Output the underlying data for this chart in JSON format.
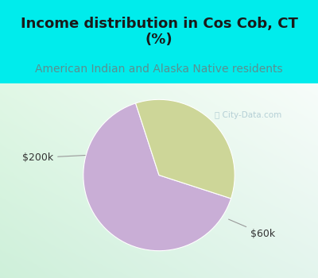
{
  "title": "Income distribution in Cos Cob, CT\n(%)",
  "subtitle": "American Indian and Alaska Native residents",
  "slices": [
    65,
    35
  ],
  "slice_labels": [
    "$60k",
    "$200k"
  ],
  "colors": [
    "#c9aed6",
    "#cdd698"
  ],
  "bg_cyan": "#00ecec",
  "title_color": "#1a1a1a",
  "subtitle_color": "#5a9090",
  "label_color": "#333333",
  "watermark_color": "#aac8d0",
  "title_fontsize": 13,
  "subtitle_fontsize": 10,
  "label_fontsize": 9,
  "startangle": 108,
  "watermark": "City-Data.com"
}
